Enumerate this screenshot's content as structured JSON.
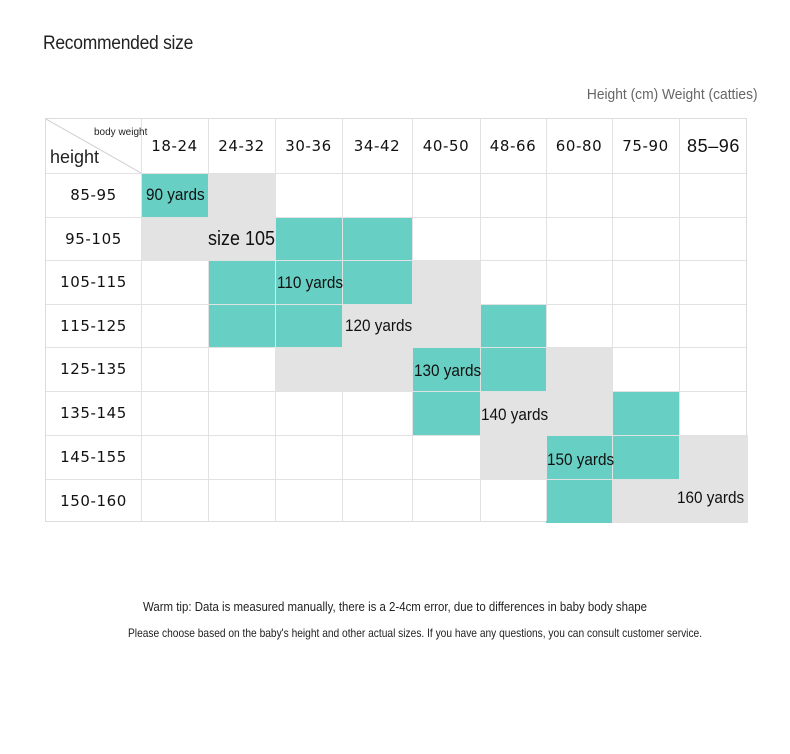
{
  "title": "Recommended size",
  "subtitle": "Height (cm) Weight (catties)",
  "table": {
    "corner_top": "body weight",
    "corner_bottom": "height",
    "columns": [
      "18-24",
      "24-32",
      "30-36",
      "34-42",
      "40-50",
      "48-66",
      "60-80",
      "75-90",
      "85–96"
    ],
    "rows": [
      "85-95",
      "95-105",
      "105-115",
      "115-125",
      "125-135",
      "135-145",
      "145-155",
      "150-160"
    ],
    "size_labels": [
      "90 yards",
      "size 105",
      "110 yards",
      "120 yards",
      "130 yards",
      "140 yards",
      "150 yards",
      "160 yards"
    ]
  },
  "tips": {
    "line1": "Warm tip: Data is measured manually, there is a 2-4cm error, due to differences in baby body shape",
    "line2": "Please choose based on the baby's height and other actual sizes. If you have any questions, you can consult customer service."
  },
  "colors": {
    "teal": "#67cfc3",
    "gray": "#e3e3e3"
  }
}
